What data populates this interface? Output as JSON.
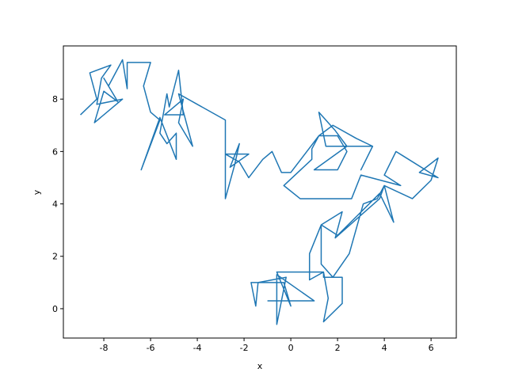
{
  "chart_data": {
    "type": "line",
    "x_label": "x",
    "y_label": "y",
    "xlim": [
      -9.73,
      7.08
    ],
    "ylim": [
      -1.12,
      10.03
    ],
    "xticks": [
      -8,
      -6,
      -4,
      -2,
      0,
      2,
      4,
      6
    ],
    "yticks": [
      0,
      2,
      4,
      6,
      8
    ],
    "series": [
      {
        "color": "#1f77b4",
        "x": [
          -1,
          1,
          -0.6,
          -0.6,
          -0.2,
          -1.4,
          -1.5,
          -1.7,
          -0.3,
          0,
          -0.6,
          1.4,
          1.4,
          2.2,
          2.2,
          1.4,
          1.6,
          1.4,
          0.8,
          0.8,
          1.3,
          1.3,
          1.8,
          2.5,
          3.1,
          3.7,
          4.0,
          4.4,
          3.8,
          2.0,
          1.3,
          2.2,
          1.9,
          3.8,
          4.0,
          5.2,
          6.0,
          6.3,
          5.5,
          6.3,
          4.5,
          4.0,
          4.7,
          3.0,
          2.6,
          0.4,
          -0.3,
          0.9,
          0.9,
          1.2,
          1.8,
          2.8,
          3.5,
          3.0,
          3.5,
          1.5,
          1.2,
          1.9,
          2.4,
          1.0,
          2.0,
          2.4,
          2.0,
          1.2,
          0.6,
          0,
          -0.4,
          -0.8,
          -1.2,
          -1.8,
          -2.2,
          -2.8,
          -2.8,
          -2.4,
          -2.2,
          -2.6,
          -1.8,
          -2.8,
          -2.8,
          -4.0,
          -4.8,
          -4.2,
          -4.8,
          -4.6,
          -5.4,
          -4.6,
          -4.8,
          -5.2,
          -5.3,
          -5.6,
          -5.3,
          -4.9,
          -4.9,
          -5.6,
          -6.4,
          -5.6,
          -6.0,
          -6.3,
          -6.0,
          -7.0,
          -7.0,
          -7.2,
          -7.8,
          -8.0,
          -7.4,
          -8.0,
          -8.4,
          -7.2,
          -8.3,
          -8.1,
          -7.7,
          -8.6,
          -8.3,
          -9.0
        ],
        "values": [
          0.3,
          0.3,
          1.3,
          -0.6,
          1.2,
          1.0,
          0.1,
          1.0,
          1.0,
          0.1,
          1.4,
          1.4,
          1.2,
          1.2,
          0.2,
          -0.5,
          0.4,
          1.4,
          1.1,
          2.1,
          3.2,
          1.7,
          1.2,
          2.1,
          4.0,
          4.2,
          4.7,
          3.3,
          4.4,
          2.8,
          3.2,
          3.7,
          2.7,
          4.2,
          4.7,
          4.2,
          4.9,
          5.75,
          5.2,
          5.0,
          6.0,
          5.1,
          4.7,
          5.1,
          4.2,
          4.2,
          4.7,
          5.7,
          6.1,
          6.6,
          7.0,
          6.5,
          6.2,
          5.3,
          6.2,
          6.2,
          7.5,
          6.8,
          6.2,
          5.3,
          5.3,
          6.0,
          6.6,
          6.6,
          5.9,
          5.2,
          5.2,
          6.0,
          5.7,
          5.0,
          5.6,
          5.9,
          4.2,
          5.5,
          6.3,
          5.4,
          5.9,
          5.9,
          7.2,
          7.8,
          8.2,
          6.2,
          7.1,
          8.0,
          7.4,
          7.4,
          9.1,
          7.7,
          8.2,
          6.7,
          6.3,
          6.7,
          5.7,
          7.3,
          5.3,
          7.2,
          7.5,
          8.5,
          9.4,
          9.4,
          8.4,
          9.5,
          8.5,
          8.8,
          7.9,
          8.3,
          7.1,
          8.0,
          7.8,
          8.8,
          9.3,
          9.0,
          8.0,
          7.4
        ]
      }
    ]
  }
}
